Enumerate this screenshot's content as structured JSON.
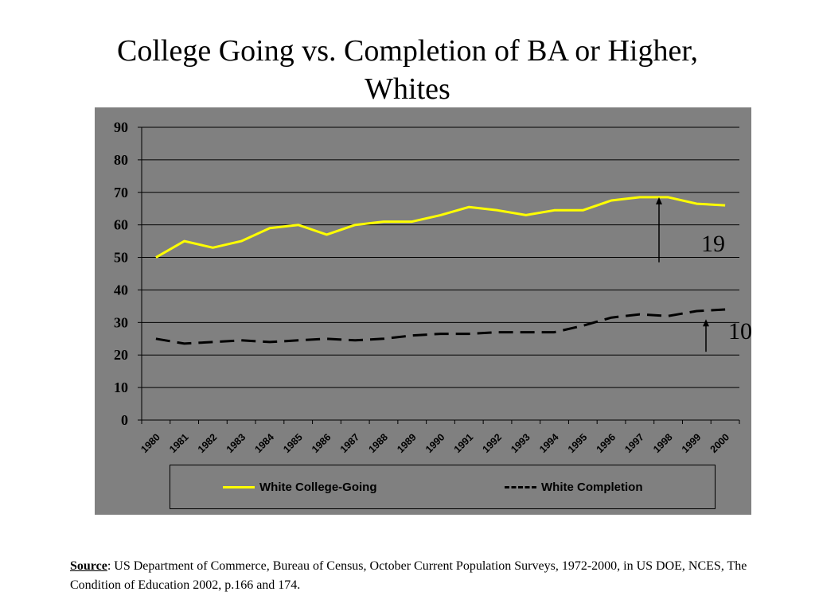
{
  "title_line1": "College Going vs. Completion of BA or Higher,",
  "title_line2": "Whites",
  "source": {
    "label": "Source",
    "text": ":  US Department of Commerce, Bureau of Census, October Current Population Surveys, 1972-2000, in US DOE, NCES, The Condition of Education 2002, p.166 and 174."
  },
  "legend": {
    "college_going": "White College-Going",
    "completion": "White Completion"
  },
  "annotations": {
    "gap_college": "19",
    "gap_completion": "10"
  },
  "colors": {
    "panel": "#808080",
    "college_going": "#ffff00",
    "completion": "#000000"
  },
  "chart_data": {
    "type": "line",
    "x": [
      "1980",
      "1981",
      "1982",
      "1983",
      "1984",
      "1985",
      "1986",
      "1987",
      "1988",
      "1989",
      "1990",
      "1991",
      "1992",
      "1993",
      "1994",
      "1995",
      "1996",
      "1997",
      "1998",
      "1999",
      "2000"
    ],
    "series": [
      {
        "name": "White College-Going",
        "style": "solid",
        "color": "#ffff00",
        "values": [
          50,
          55,
          53,
          55,
          59,
          60,
          57,
          60,
          61,
          61,
          63,
          65.5,
          64.5,
          63,
          64.5,
          64.5,
          67.5,
          68.5,
          68.5,
          66.5,
          66
        ]
      },
      {
        "name": "White Completion",
        "style": "dashed",
        "color": "#000000",
        "values": [
          25,
          23.5,
          24,
          24.5,
          24,
          24.5,
          25,
          24.5,
          25,
          26,
          26.5,
          26.5,
          27,
          27,
          27,
          29,
          31.5,
          32.5,
          32,
          33.5,
          34
        ]
      }
    ],
    "yticks": [
      0,
      10,
      20,
      30,
      40,
      50,
      60,
      70,
      80,
      90
    ],
    "ylim": [
      0,
      90
    ],
    "grid": true,
    "legend_position": "bottom"
  }
}
